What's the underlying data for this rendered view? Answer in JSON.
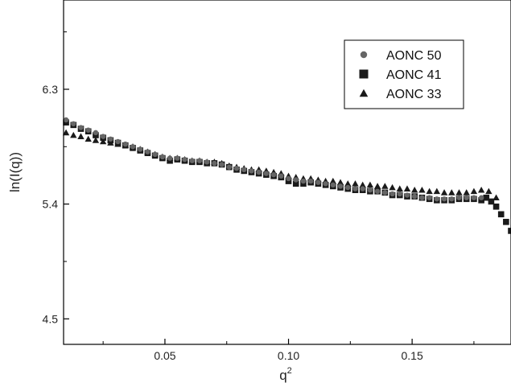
{
  "chart_data": {
    "type": "scatter",
    "xlabel": "q",
    "xlabel_superscript": "2",
    "ylabel": "ln(I(q))",
    "xlim": [
      0.009,
      0.19
    ],
    "ylim": [
      4.3,
      7.0
    ],
    "x_ticks": [
      0.05,
      0.1,
      0.15
    ],
    "x_tick_labels": [
      "0.05",
      "0.10",
      "0.15"
    ],
    "y_ticks": [
      4.5,
      5.4,
      6.3
    ],
    "y_tick_labels": [
      "4.5",
      "5.4",
      "6.3"
    ],
    "grid": false,
    "legend_position": "top-right",
    "series": [
      {
        "name": "AONC 50",
        "marker": "circle",
        "color": "#666666",
        "x": [
          0.01,
          0.013,
          0.016,
          0.019,
          0.022,
          0.025,
          0.028,
          0.031,
          0.034,
          0.037,
          0.04,
          0.043,
          0.046,
          0.049,
          0.052,
          0.055,
          0.058,
          0.061,
          0.064,
          0.067,
          0.07,
          0.073,
          0.076,
          0.079,
          0.082,
          0.085,
          0.088,
          0.091,
          0.094,
          0.097,
          0.1,
          0.103,
          0.106,
          0.109,
          0.112,
          0.115,
          0.118,
          0.121,
          0.124,
          0.127,
          0.13,
          0.133,
          0.136,
          0.139,
          0.142,
          0.145,
          0.148,
          0.151,
          0.154,
          0.157,
          0.16,
          0.163,
          0.166,
          0.169,
          0.172,
          0.175,
          0.178
        ],
        "y": [
          6.06,
          6.03,
          6.0,
          5.98,
          5.96,
          5.93,
          5.91,
          5.89,
          5.87,
          5.85,
          5.83,
          5.81,
          5.79,
          5.77,
          5.76,
          5.76,
          5.75,
          5.74,
          5.74,
          5.73,
          5.72,
          5.71,
          5.69,
          5.68,
          5.67,
          5.66,
          5.65,
          5.64,
          5.63,
          5.62,
          5.6,
          5.59,
          5.58,
          5.58,
          5.57,
          5.56,
          5.55,
          5.54,
          5.53,
          5.52,
          5.52,
          5.51,
          5.5,
          5.49,
          5.48,
          5.48,
          5.47,
          5.46,
          5.45,
          5.45,
          5.44,
          5.44,
          5.44,
          5.45,
          5.45,
          5.45,
          5.45
        ]
      },
      {
        "name": "AONC 41",
        "marker": "square",
        "color": "#1a1a1a",
        "x": [
          0.01,
          0.013,
          0.016,
          0.019,
          0.022,
          0.025,
          0.028,
          0.031,
          0.034,
          0.037,
          0.04,
          0.043,
          0.046,
          0.049,
          0.052,
          0.055,
          0.058,
          0.061,
          0.064,
          0.067,
          0.07,
          0.073,
          0.076,
          0.079,
          0.082,
          0.085,
          0.088,
          0.091,
          0.094,
          0.097,
          0.1,
          0.103,
          0.106,
          0.109,
          0.112,
          0.115,
          0.118,
          0.121,
          0.124,
          0.127,
          0.13,
          0.133,
          0.136,
          0.139,
          0.142,
          0.145,
          0.148,
          0.151,
          0.154,
          0.157,
          0.16,
          0.163,
          0.166,
          0.169,
          0.172,
          0.175,
          0.178,
          0.18,
          0.182,
          0.184,
          0.186,
          0.188,
          0.19
        ],
        "y": [
          6.04,
          6.02,
          5.99,
          5.97,
          5.94,
          5.92,
          5.9,
          5.88,
          5.86,
          5.84,
          5.82,
          5.8,
          5.78,
          5.76,
          5.74,
          5.75,
          5.74,
          5.73,
          5.73,
          5.72,
          5.72,
          5.71,
          5.69,
          5.67,
          5.66,
          5.65,
          5.64,
          5.63,
          5.62,
          5.61,
          5.58,
          5.56,
          5.56,
          5.57,
          5.56,
          5.55,
          5.54,
          5.53,
          5.52,
          5.51,
          5.51,
          5.5,
          5.5,
          5.49,
          5.47,
          5.47,
          5.46,
          5.46,
          5.45,
          5.44,
          5.43,
          5.43,
          5.43,
          5.44,
          5.44,
          5.44,
          5.43,
          5.45,
          5.42,
          5.38,
          5.32,
          5.26,
          5.19
        ]
      },
      {
        "name": "AONC 33",
        "marker": "triangle",
        "color": "#1a1a1a",
        "x": [
          0.01,
          0.013,
          0.016,
          0.019,
          0.022,
          0.025,
          0.028,
          0.031,
          0.034,
          0.037,
          0.04,
          0.043,
          0.046,
          0.049,
          0.052,
          0.055,
          0.058,
          0.061,
          0.064,
          0.067,
          0.07,
          0.073,
          0.076,
          0.079,
          0.082,
          0.085,
          0.088,
          0.091,
          0.094,
          0.097,
          0.1,
          0.103,
          0.106,
          0.109,
          0.112,
          0.115,
          0.118,
          0.121,
          0.124,
          0.127,
          0.13,
          0.133,
          0.136,
          0.139,
          0.142,
          0.145,
          0.148,
          0.151,
          0.154,
          0.157,
          0.16,
          0.163,
          0.166,
          0.169,
          0.172,
          0.175,
          0.178,
          0.181,
          0.184
        ],
        "y": [
          5.96,
          5.94,
          5.93,
          5.91,
          5.9,
          5.89,
          5.88,
          5.87,
          5.86,
          5.85,
          5.83,
          5.81,
          5.79,
          5.77,
          5.76,
          5.76,
          5.75,
          5.74,
          5.74,
          5.73,
          5.73,
          5.72,
          5.7,
          5.69,
          5.68,
          5.67,
          5.67,
          5.66,
          5.65,
          5.64,
          5.62,
          5.61,
          5.6,
          5.6,
          5.59,
          5.58,
          5.58,
          5.57,
          5.56,
          5.56,
          5.55,
          5.55,
          5.54,
          5.54,
          5.53,
          5.52,
          5.52,
          5.51,
          5.51,
          5.5,
          5.5,
          5.49,
          5.49,
          5.49,
          5.49,
          5.5,
          5.51,
          5.5,
          5.45
        ]
      }
    ]
  }
}
